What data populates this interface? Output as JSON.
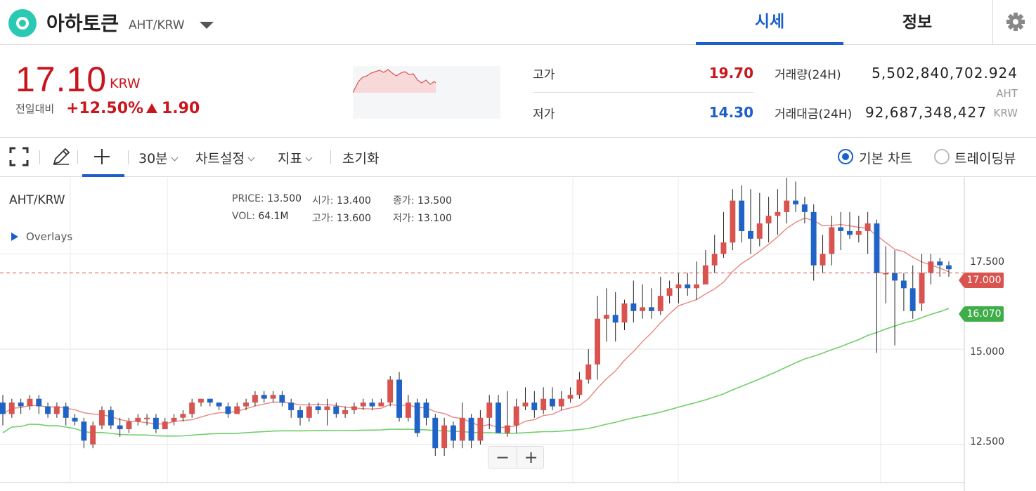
{
  "header": {
    "coin_name": "아하토큰",
    "pair": "AHT/KRW",
    "tabs": [
      "시세",
      "정보"
    ]
  },
  "summary": {
    "price": "17.10",
    "price_unit": "KRW",
    "compare_label": "전일대비",
    "change_pct": "+12.50%",
    "change_val": "1.90",
    "high_label": "고가",
    "high_val": "19.70",
    "low_label": "저가",
    "low_val": "14.30",
    "volume_label": "거래량(24H)",
    "volume_val": "5,502,840,702.924",
    "volume_unit": "AHT",
    "amount_label": "거래대금(24H)",
    "amount_val": "92,687,348,427",
    "amount_unit": "KRW"
  },
  "toolbar": {
    "interval": "30분",
    "chart_settings": "차트설정",
    "indicators": "지표",
    "reset": "초기화",
    "basic_chart": "기본 차트",
    "tradingview": "트레이딩뷰"
  },
  "chart": {
    "symbol": "AHT/KRW",
    "overlays": "Overlays",
    "ohlc": {
      "price_k": "PRICE:",
      "price_v": "13.500",
      "open_k": "시가:",
      "open_v": "13.400",
      "close_k": "종가:",
      "close_v": "13.500",
      "vol_k": "VOL:",
      "vol_v": "64.1M",
      "high_k": "고가:",
      "high_v": "13.600",
      "low_k": "저가:",
      "low_v": "13.100"
    },
    "y_labels": [
      "17.500",
      "15.000",
      "12.500"
    ],
    "tag_price": "17.000",
    "tag_ma": "16.070",
    "zoom_out": "−",
    "zoom_in": "+"
  },
  "colors": {
    "up": "#d9534f",
    "down": "#1f63c6",
    "accent": "#1a5fcc",
    "ma_short": "#e8877f",
    "ma_long": "#6fcf6a"
  },
  "chart_data": {
    "type": "candlestick",
    "ylim": [
      11.5,
      19.5
    ],
    "yticks": [
      12.5,
      15.0,
      17.5
    ],
    "current_price": 17.0,
    "ma_value": 16.07,
    "candles": [
      [
        13.6,
        13.3,
        13.8,
        13.0
      ],
      [
        13.3,
        13.6,
        13.7,
        13.2
      ],
      [
        13.6,
        13.5,
        13.7,
        13.3
      ],
      [
        13.5,
        13.7,
        13.8,
        13.4
      ],
      [
        13.7,
        13.5,
        13.8,
        13.3
      ],
      [
        13.5,
        13.3,
        13.6,
        13.2
      ],
      [
        13.3,
        13.5,
        13.6,
        13.2
      ],
      [
        13.5,
        13.2,
        13.6,
        13.0
      ],
      [
        13.2,
        13.1,
        13.3,
        13.0
      ],
      [
        13.1,
        12.6,
        13.2,
        12.4
      ],
      [
        12.5,
        13.0,
        13.1,
        12.4
      ],
      [
        13.0,
        13.4,
        13.5,
        12.9
      ],
      [
        13.4,
        13.0,
        13.5,
        12.9
      ],
      [
        13.0,
        12.9,
        13.2,
        12.7
      ],
      [
        12.9,
        13.1,
        13.2,
        12.8
      ],
      [
        13.1,
        13.2,
        13.3,
        13.0
      ],
      [
        13.2,
        13.2,
        13.3,
        13.0
      ],
      [
        13.2,
        12.9,
        13.3,
        12.8
      ],
      [
        12.9,
        13.1,
        13.2,
        12.9
      ],
      [
        13.1,
        13.2,
        13.3,
        13.0
      ],
      [
        13.2,
        13.3,
        13.4,
        13.1
      ],
      [
        13.3,
        13.6,
        13.7,
        13.2
      ],
      [
        13.6,
        13.7,
        13.7,
        13.5
      ],
      [
        13.7,
        13.6,
        13.7,
        13.5
      ],
      [
        13.6,
        13.5,
        13.6,
        13.4
      ],
      [
        13.5,
        13.3,
        13.6,
        13.2
      ],
      [
        13.3,
        13.5,
        13.6,
        13.3
      ],
      [
        13.5,
        13.6,
        13.7,
        13.4
      ],
      [
        13.6,
        13.8,
        13.9,
        13.5
      ],
      [
        13.8,
        13.7,
        13.9,
        13.6
      ],
      [
        13.7,
        13.8,
        13.9,
        13.6
      ],
      [
        13.8,
        13.6,
        13.9,
        13.5
      ],
      [
        13.6,
        13.4,
        13.7,
        13.2
      ],
      [
        13.4,
        13.2,
        13.5,
        13.0
      ],
      [
        13.2,
        13.5,
        13.6,
        13.1
      ],
      [
        13.5,
        13.4,
        13.6,
        13.3
      ],
      [
        13.4,
        13.5,
        13.7,
        13.0
      ],
      [
        13.5,
        13.3,
        13.6,
        13.2
      ],
      [
        13.3,
        13.4,
        13.5,
        13.2
      ],
      [
        13.4,
        13.5,
        13.6,
        13.3
      ],
      [
        13.5,
        13.6,
        13.7,
        13.4
      ],
      [
        13.6,
        13.5,
        13.7,
        13.4
      ],
      [
        13.5,
        13.6,
        13.7,
        13.5
      ],
      [
        13.6,
        14.2,
        14.3,
        13.5
      ],
      [
        14.2,
        13.2,
        14.4,
        13.1
      ],
      [
        13.2,
        13.6,
        13.8,
        13.1
      ],
      [
        13.6,
        12.8,
        13.7,
        12.7
      ],
      [
        13.6,
        13.2,
        13.7,
        13.0
      ],
      [
        13.2,
        12.4,
        13.3,
        12.2
      ],
      [
        12.4,
        13.0,
        13.2,
        12.2
      ],
      [
        13.0,
        12.6,
        13.1,
        12.4
      ],
      [
        12.6,
        13.2,
        13.6,
        12.4
      ],
      [
        13.2,
        12.6,
        13.3,
        12.4
      ],
      [
        12.6,
        13.2,
        13.4,
        12.5
      ],
      [
        13.2,
        13.6,
        13.8,
        12.9
      ],
      [
        13.6,
        12.8,
        13.8,
        12.8
      ],
      [
        12.8,
        13.0,
        13.9,
        12.7
      ],
      [
        13.0,
        13.5,
        13.7,
        12.8
      ],
      [
        13.5,
        13.6,
        14.0,
        13.4
      ],
      [
        13.6,
        13.4,
        13.9,
        13.2
      ],
      [
        13.4,
        13.7,
        14.0,
        13.3
      ],
      [
        13.7,
        13.5,
        14.0,
        13.4
      ],
      [
        13.5,
        13.7,
        13.9,
        13.4
      ],
      [
        13.7,
        13.8,
        14.0,
        13.6
      ],
      [
        13.8,
        14.2,
        14.4,
        13.7
      ],
      [
        14.2,
        14.6,
        15.0,
        14.1
      ],
      [
        14.6,
        15.8,
        16.4,
        14.2
      ],
      [
        15.8,
        15.9,
        16.6,
        15.2
      ],
      [
        15.9,
        15.7,
        16.5,
        15.2
      ],
      [
        15.7,
        16.2,
        16.3,
        15.5
      ],
      [
        16.2,
        16.0,
        16.8,
        15.7
      ],
      [
        16.0,
        16.1,
        16.7,
        15.8
      ],
      [
        16.1,
        16.0,
        16.6,
        15.8
      ],
      [
        16.0,
        16.4,
        16.9,
        15.9
      ],
      [
        16.4,
        16.6,
        16.8,
        16.2
      ],
      [
        16.6,
        16.7,
        17.0,
        16.2
      ],
      [
        16.7,
        16.6,
        17.0,
        16.4
      ],
      [
        16.6,
        16.7,
        17.3,
        16.3
      ],
      [
        16.7,
        17.2,
        17.6,
        16.8
      ],
      [
        17.2,
        17.5,
        18.0,
        17.0
      ],
      [
        17.5,
        17.8,
        18.6,
        17.4
      ],
      [
        17.8,
        18.9,
        19.2,
        17.6
      ],
      [
        18.9,
        18.1,
        19.3,
        17.8
      ],
      [
        18.1,
        17.9,
        19.2,
        17.5
      ],
      [
        17.9,
        18.3,
        19.1,
        17.7
      ],
      [
        18.3,
        18.5,
        19.0,
        17.8
      ],
      [
        18.5,
        18.6,
        19.2,
        18.0
      ],
      [
        18.6,
        18.9,
        19.5,
        18.3
      ],
      [
        18.9,
        18.8,
        19.4,
        18.6
      ],
      [
        18.8,
        18.6,
        19.0,
        18.3
      ],
      [
        18.6,
        17.2,
        18.8,
        16.8
      ],
      [
        17.2,
        17.5,
        18.0,
        17.0
      ],
      [
        17.5,
        18.2,
        18.5,
        17.2
      ],
      [
        18.2,
        18.1,
        18.6,
        17.6
      ],
      [
        18.1,
        18.0,
        18.6,
        17.9
      ],
      [
        18.0,
        18.1,
        18.5,
        17.8
      ],
      [
        18.1,
        18.3,
        18.6,
        17.5
      ],
      [
        18.3,
        17.0,
        18.4,
        14.9
      ],
      [
        17.0,
        17.0,
        17.7,
        16.2
      ],
      [
        17.0,
        16.8,
        17.6,
        15.1
      ],
      [
        16.8,
        16.6,
        17.0,
        16.0
      ],
      [
        16.6,
        16.0,
        17.2,
        15.8
      ],
      [
        16.2,
        17.0,
        17.5,
        16.0
      ],
      [
        17.0,
        17.3,
        17.5,
        16.7
      ],
      [
        17.3,
        17.2,
        17.4,
        16.9
      ],
      [
        17.2,
        17.1,
        17.3,
        16.9
      ]
    ]
  }
}
